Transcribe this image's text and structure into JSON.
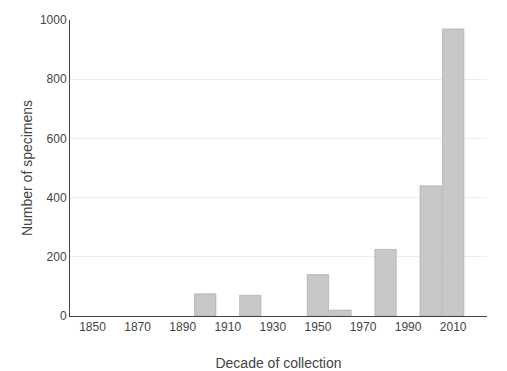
{
  "chart_data": {
    "type": "bar",
    "x": [
      1900,
      1920,
      1950,
      1960,
      1980,
      2000,
      2010
    ],
    "values": [
      75,
      70,
      140,
      20,
      225,
      440,
      970
    ],
    "color": "#c8c8c8",
    "xlabel": "Decade of collection",
    "ylabel": "Number of specimens",
    "xlim": [
      1840,
      2025
    ],
    "xticks": [
      1850,
      1870,
      1890,
      1910,
      1930,
      1950,
      1970,
      1990,
      2010
    ],
    "ylim": [
      0,
      1000
    ],
    "yticks": [
      0,
      200,
      400,
      600,
      800,
      1000
    ],
    "grid": true
  }
}
